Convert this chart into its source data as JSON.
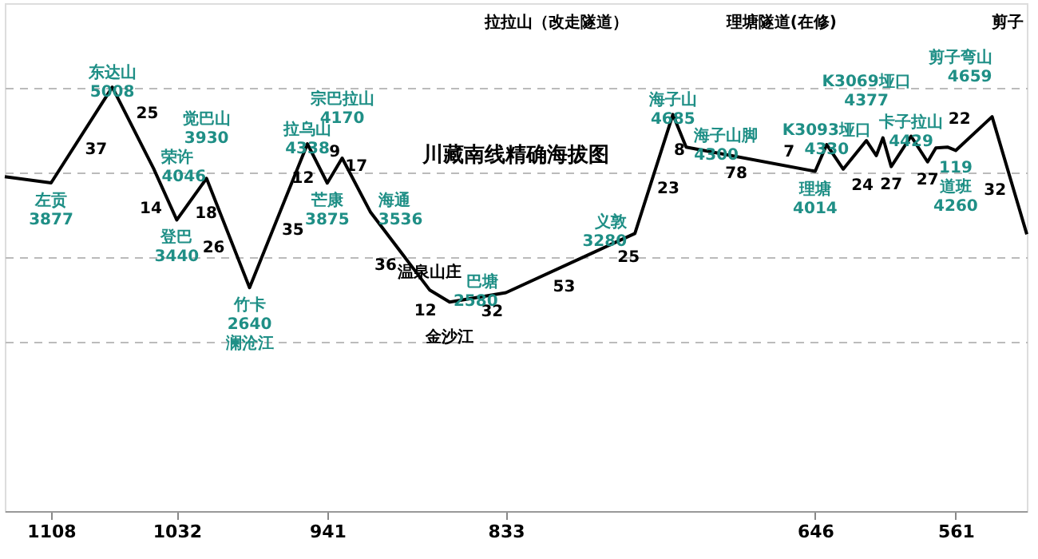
{
  "chart_data": {
    "type": "line",
    "title": "川藏南线精确海拔图",
    "x": [
      1136,
      1108,
      1071,
      1046,
      1032,
      1014,
      988,
      953,
      941,
      932,
      915,
      879,
      867,
      833,
      780,
      755,
      732,
      724,
      646,
      639,
      629,
      615,
      609,
      605,
      600,
      588,
      578,
      573,
      566,
      561,
      539,
      518
    ],
    "series": [
      {
        "color": "#000000",
        "values": [
          3950,
          3877,
          5008,
          4046,
          3440,
          3930,
          2640,
          4338,
          3875,
          4170,
          3536,
          2610,
          2470,
          2580,
          3056,
          3280,
          4685,
          4300,
          4014,
          4330,
          4040,
          4377,
          4200,
          4410,
          4070,
          4429,
          4125,
          4290,
          4300,
          4260,
          4659,
          3270
        ],
        "value_labels": [
          null,
          "左贡\n3877",
          "东达山\n5008",
          "荣许\n4046",
          "登巴\n3440",
          "觉巴山\n3930",
          "竹卡\n2640\n澜沧江",
          "拉乌山\n4338",
          "芒康\n3875",
          "宗巴拉山\n4170",
          "海通\n3536",
          null,
          null,
          "巴塘\n2580",
          null,
          "义敦\n3280",
          "海子山\n4685",
          "海子山脚\n4300",
          "理塘\n4014",
          "K3093垭口\n4330",
          null,
          "K3069垭口\n4377",
          null,
          null,
          null,
          "卡子拉山\n4429",
          null,
          null,
          null,
          "119\n道班\n4260",
          "剪子弯山\n4659",
          null
        ]
      }
    ],
    "xlim": [
      1136,
      518
    ],
    "xticks": [
      1108,
      1032,
      941,
      833,
      646,
      561
    ],
    "ylim": [
      0,
      6000
    ],
    "yticks": [
      {
        "value": 2000,
        "label": null
      },
      {
        "value": 3000,
        "label": null
      },
      {
        "value": 4000,
        "label": null
      },
      {
        "value": 5000,
        "label": null
      }
    ],
    "grid": "y",
    "tick_labels": "x",
    "marker": "none",
    "line_style": "solid",
    "annotations": [
      {
        "text": "37",
        "x": 1089.5,
        "y": 4442.5
      },
      {
        "text": "25",
        "x": 1058.5,
        "y": 4527
      },
      {
        "text": "14",
        "x": 1039,
        "y": 3743
      },
      {
        "text": "18",
        "x": 1023,
        "y": 3685
      },
      {
        "text": "26",
        "x": 1001,
        "y": 3285
      },
      {
        "text": "35",
        "x": 970.5,
        "y": 3489
      },
      {
        "text": "12",
        "x": 947,
        "y": 4106.5
      },
      {
        "text": "9",
        "x": 936.5,
        "y": 4022.5
      },
      {
        "text": "17",
        "x": 923.5,
        "y": 3853
      },
      {
        "text": "36",
        "x": 897,
        "y": 3073
      },
      {
        "text": "12",
        "x": 873,
        "y": 2540
      },
      {
        "text": "32",
        "x": 850,
        "y": 2525
      },
      {
        "text": "53",
        "x": 806.5,
        "y": 2818
      },
      {
        "text": "25",
        "x": 767.5,
        "y": 3168
      },
      {
        "text": "23",
        "x": 743.5,
        "y": 3982.5
      },
      {
        "text": "8",
        "x": 728,
        "y": 4492.5
      },
      {
        "text": "78",
        "x": 685,
        "y": 4157
      },
      {
        "text": "7",
        "x": 642.5,
        "y": 4172
      },
      {
        "text": "24",
        "x": 629,
        "y": 4040
      },
      {
        "text": "27",
        "x": 600,
        "y": 4070
      },
      {
        "text": "27",
        "x": 578,
        "y": 4125
      },
      {
        "text": "22",
        "x": 550,
        "y": 4459.5
      },
      {
        "text": "32",
        "x": 528.5,
        "y": 3964.5
      },
      {
        "text": "温泉山庄",
        "x": 879,
        "y": 2610
      },
      {
        "text": "金沙江",
        "x": 867,
        "y": 2470
      },
      "拉拉山（改走隧道）",
      "理塘隧道(在修)",
      "剪子"
    ]
  }
}
